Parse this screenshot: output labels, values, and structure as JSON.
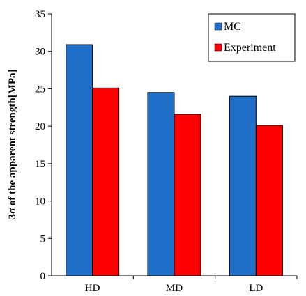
{
  "chart_data": {
    "type": "bar",
    "title": "",
    "xlabel": "",
    "ylabel": "3σ of the apparent strength[MPa]",
    "categories": [
      "HD",
      "MD",
      "LD"
    ],
    "series": [
      {
        "name": "MC",
        "values": [
          30.9,
          24.5,
          24.0
        ],
        "color": "#1f6fc9"
      },
      {
        "name": "Experiment",
        "values": [
          25.1,
          21.6,
          20.1
        ],
        "color": "#ff0000"
      }
    ],
    "ylim": [
      0,
      35
    ],
    "yticks": [
      0,
      5,
      10,
      15,
      20,
      25,
      30,
      35
    ],
    "grid": false,
    "legend_position": "top-right"
  }
}
